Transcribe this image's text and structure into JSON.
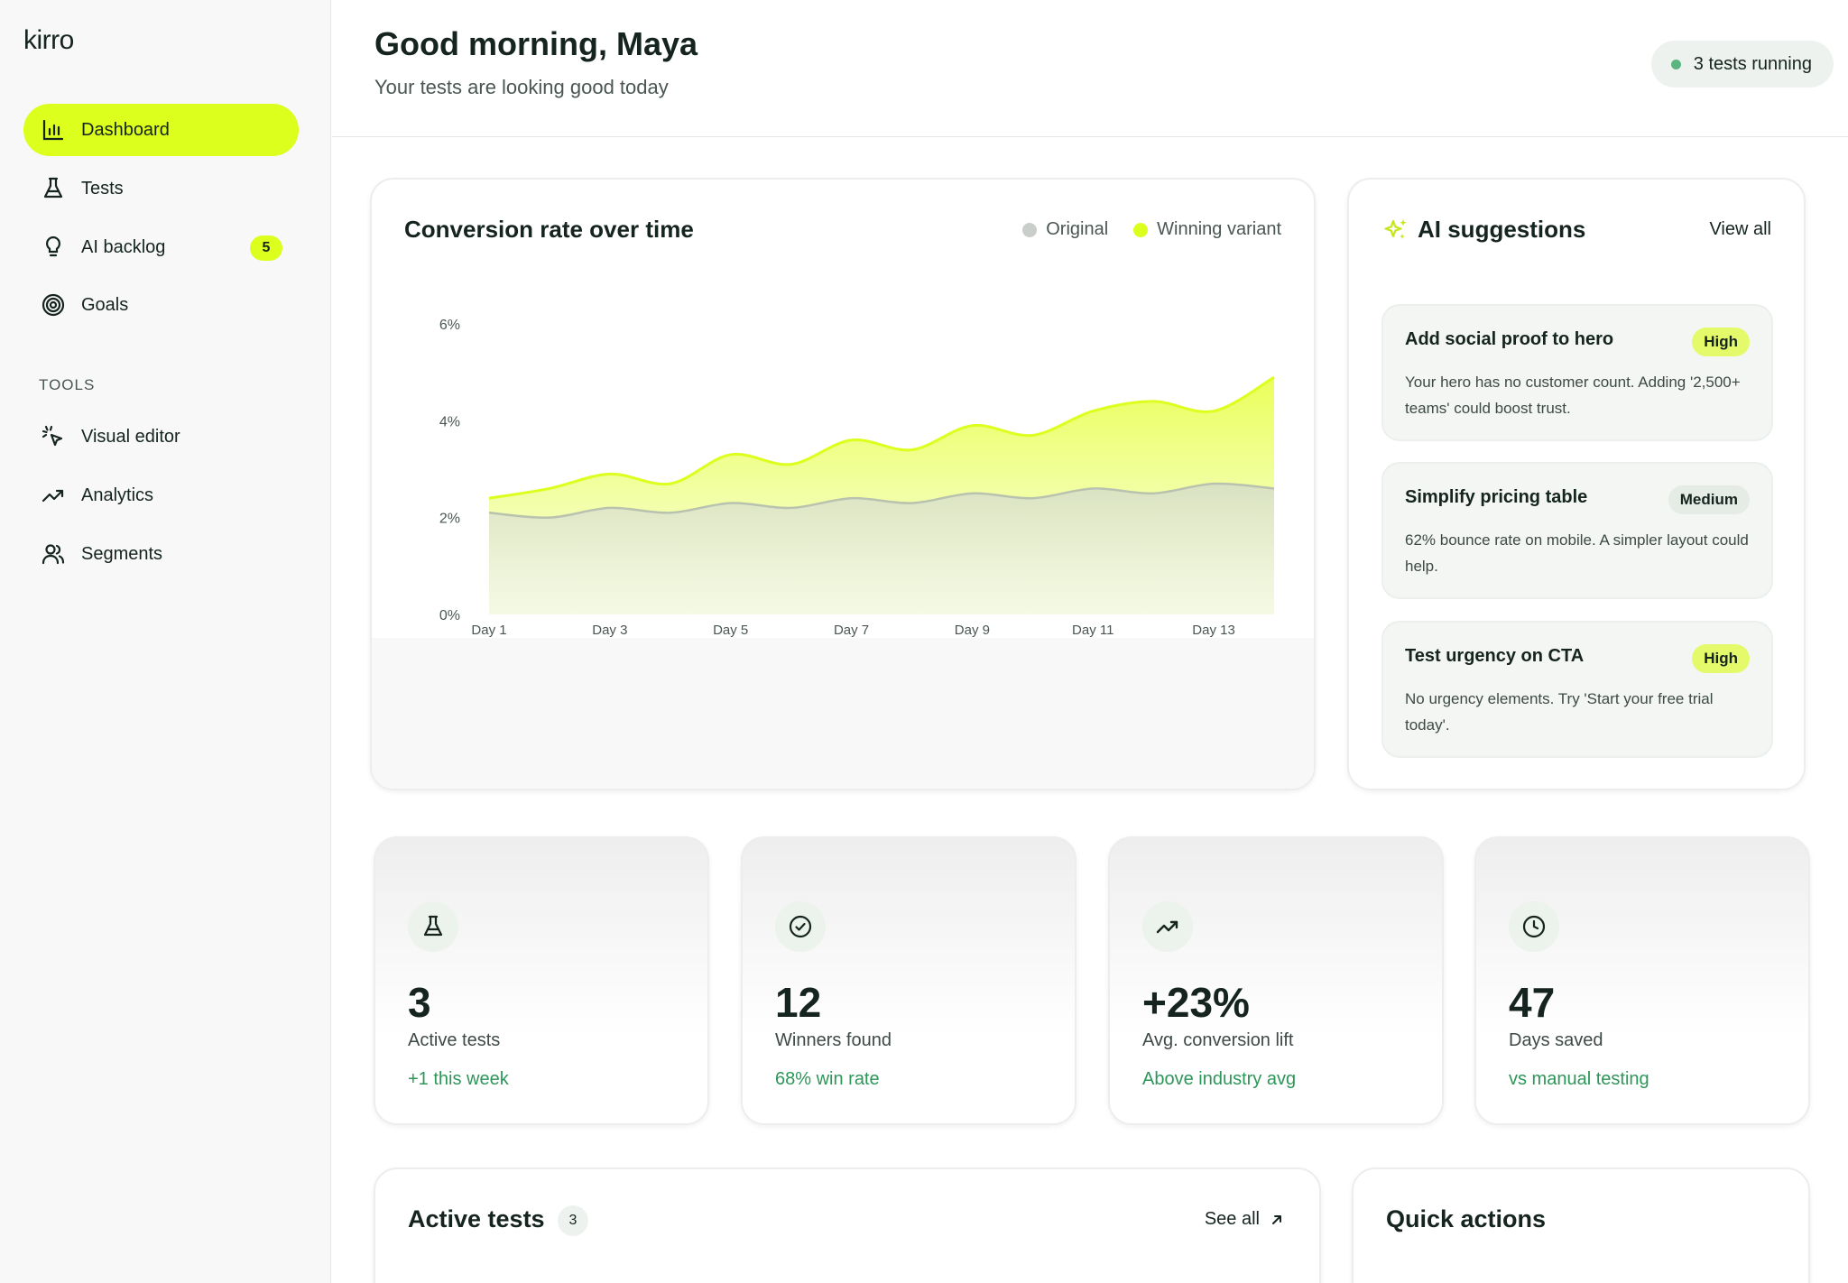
{
  "app": {
    "logo": "kirro"
  },
  "sidebar": {
    "items": [
      {
        "label": "Dashboard",
        "icon": "bar-chart-icon",
        "active": true
      },
      {
        "label": "Tests",
        "icon": "flask-icon"
      },
      {
        "label": "AI backlog",
        "icon": "lightbulb-icon",
        "badge": "5"
      },
      {
        "label": "Goals",
        "icon": "target-icon"
      }
    ],
    "tools_label": "TOOLS",
    "tools": [
      {
        "label": "Visual editor",
        "icon": "cursor-click-icon"
      },
      {
        "label": "Analytics",
        "icon": "trend-up-icon"
      },
      {
        "label": "Segments",
        "icon": "users-icon"
      }
    ]
  },
  "header": {
    "greeting": "Good morning, Maya",
    "subtitle": "Your tests are looking good today",
    "status": "3 tests running"
  },
  "chart_card": {
    "title": "Conversion rate over time",
    "legend": [
      "Original",
      "Winning variant"
    ]
  },
  "chart_data": {
    "type": "area",
    "x": [
      "Day 1",
      "Day 2",
      "Day 3",
      "Day 4",
      "Day 5",
      "Day 6",
      "Day 7",
      "Day 8",
      "Day 9",
      "Day 10",
      "Day 11",
      "Day 12",
      "Day 13",
      "Day 14"
    ],
    "x_tick_labels": [
      "Day 1",
      "Day 3",
      "Day 5",
      "Day 7",
      "Day 9",
      "Day 11",
      "Day 13"
    ],
    "y_tick_labels": [
      "0%",
      "2%",
      "4%",
      "6%"
    ],
    "ylim": [
      0,
      6
    ],
    "series": [
      {
        "name": "Original",
        "values": [
          2.1,
          2.0,
          2.2,
          2.1,
          2.3,
          2.2,
          2.4,
          2.3,
          2.5,
          2.4,
          2.6,
          2.5,
          2.7,
          2.6
        ],
        "color": "#c9d1c6"
      },
      {
        "name": "Winning variant",
        "values": [
          2.4,
          2.6,
          2.9,
          2.7,
          3.3,
          3.1,
          3.6,
          3.4,
          3.9,
          3.7,
          4.2,
          4.4,
          4.2,
          4.9
        ],
        "color": "#dcff1e"
      }
    ]
  },
  "ai": {
    "title": "AI suggestions",
    "view_all": "View all",
    "suggestions": [
      {
        "title": "Add social proof to hero",
        "badge": "High",
        "desc": "Your hero has no customer count. Adding '2,500+ teams' could boost trust."
      },
      {
        "title": "Simplify pricing table",
        "badge": "Medium",
        "desc": "62% bounce rate on mobile. A simpler layout could help."
      },
      {
        "title": "Test urgency on CTA",
        "badge": "High",
        "desc": "No urgency elements. Try 'Start your free trial today'."
      }
    ]
  },
  "stats": [
    {
      "icon": "flask-icon",
      "value": "3",
      "label": "Active tests",
      "note": "+1 this week"
    },
    {
      "icon": "check-circle-icon",
      "value": "12",
      "label": "Winners found",
      "note": "68% win rate"
    },
    {
      "icon": "trend-up-icon",
      "value": "+23%",
      "label": "Avg. conversion lift",
      "note": "Above industry avg"
    },
    {
      "icon": "clock-icon",
      "value": "47",
      "label": "Days saved",
      "note": "vs manual testing"
    }
  ],
  "active_tests": {
    "title": "Active tests",
    "count": "3",
    "see_all": "See all"
  },
  "quick_actions": {
    "title": "Quick actions"
  },
  "colors": {
    "accent": "#dcff1e",
    "positive": "#2d9659",
    "status_dot": "#5bb57e"
  }
}
